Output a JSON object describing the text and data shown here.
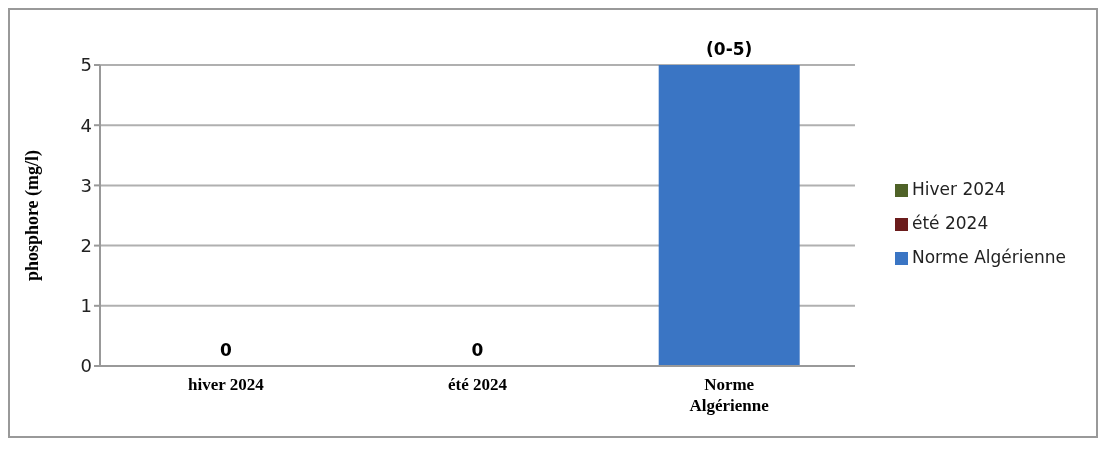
{
  "chart_data": {
    "type": "bar",
    "ylabel": "phosphore (mg/l)",
    "categories": [
      "hiver 2024",
      "été 2024",
      "Norme Algérienne"
    ],
    "stacked": true,
    "series": [
      {
        "name": "Hiver 2024",
        "color": "#4f6228",
        "values": [
          0,
          null,
          null
        ],
        "value_labels": [
          "0",
          null,
          null
        ]
      },
      {
        "name": "été 2024",
        "color": "#6b1c1c",
        "values": [
          null,
          0,
          null
        ],
        "value_labels": [
          null,
          "0",
          null
        ]
      },
      {
        "name": "Norme Algérienne",
        "color": "#3a75c4",
        "values": [
          null,
          null,
          5
        ],
        "value_labels": [
          null,
          null,
          "(0-5)"
        ]
      }
    ],
    "ylim": [
      0,
      5
    ],
    "yticks": [
      0,
      1,
      2,
      3,
      4,
      5
    ],
    "grid": "y",
    "legend": "right"
  }
}
